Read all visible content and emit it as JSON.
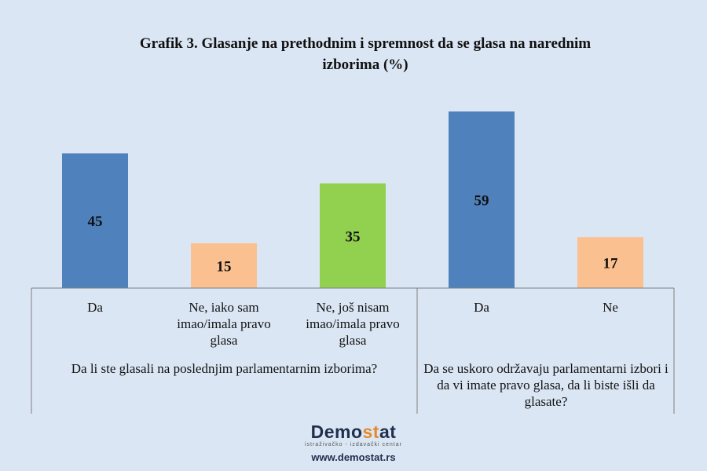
{
  "chart_data": {
    "type": "bar",
    "title": "Grafik 3. Glasanje na prethodnim i spremnost da se glasa na narednim izborima (%)",
    "categories": [
      "Da",
      "Ne, iako sam imao/imala pravo glasa",
      "Ne, još nisam imao/imala pravo glasa",
      "Da",
      "Ne"
    ],
    "values": [
      45,
      15,
      35,
      59,
      17
    ],
    "groups": [
      {
        "label": "Da li ste glasali na poslednjim parlamentarnim izborima?",
        "categories": [
          0,
          1,
          2
        ]
      },
      {
        "label": "Da se uskoro održavaju parlamentarni izbori i da vi imate pravo glasa, da li biste išli da glasate?",
        "categories": [
          3,
          4
        ]
      }
    ],
    "colors": [
      "#4f81bd",
      "#fac090",
      "#92d050",
      "#4f81bd",
      "#fac090"
    ],
    "data_labels": [
      "45",
      "15",
      "35",
      "59",
      "17"
    ],
    "ylim": [
      0,
      65
    ],
    "grid": false,
    "legend": "none",
    "xlabel": "",
    "ylabel": ""
  },
  "logo": {
    "brand_prefix": "Demo",
    "brand_accent": "st",
    "brand_suffix": "at",
    "tagline": "istraživačko - izdavački centar",
    "url": "www.demostat.rs"
  }
}
